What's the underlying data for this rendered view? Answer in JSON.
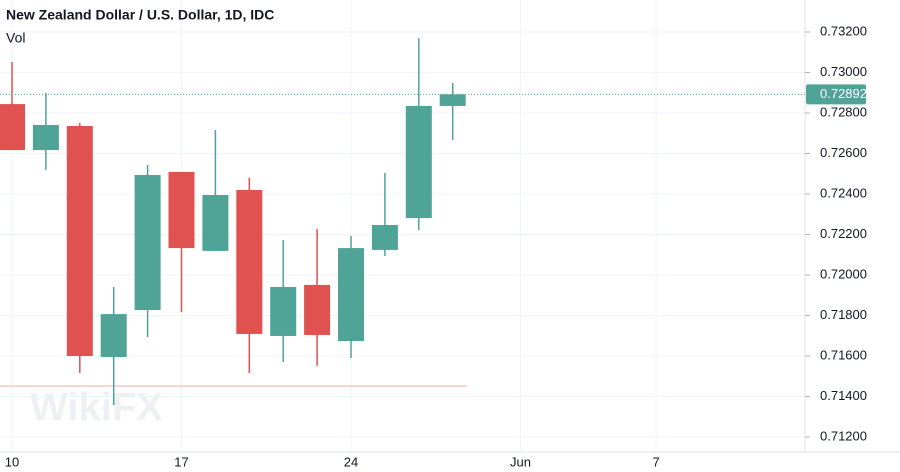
{
  "chart_data": {
    "type": "candlestick",
    "title": "New Zealand Dollar / U.S. Dollar, 1D, IDC",
    "subtitle": "Vol",
    "watermark": "WikiFX",
    "categories": [
      "10",
      null,
      null,
      null,
      null,
      "17",
      null,
      null,
      null,
      null,
      "24",
      null,
      null,
      null,
      null,
      "Jun",
      null,
      null,
      null,
      "7",
      null,
      null,
      null,
      null
    ],
    "open": [
      0.72844,
      0.72617,
      0.72736,
      0.71595,
      0.71827,
      0.72509,
      0.72119,
      0.7242,
      0.71699,
      0.71951,
      0.71674,
      0.72124,
      0.72281,
      0.72835,
      null,
      null,
      null,
      null,
      null,
      null,
      null,
      null,
      null,
      null
    ],
    "high": [
      0.73052,
      0.72899,
      0.72751,
      0.71941,
      0.72543,
      0.72509,
      0.72716,
      0.72479,
      0.72173,
      0.72227,
      0.72193,
      0.72504,
      0.7317,
      0.72948,
      null,
      null,
      null,
      null,
      null,
      null,
      null,
      null,
      null,
      null
    ],
    "low": [
      0.72617,
      0.72519,
      0.71516,
      0.71358,
      0.71694,
      0.71817,
      0.72119,
      0.71516,
      0.7157,
      0.71551,
      0.7159,
      0.72094,
      0.72222,
      0.72667,
      null,
      null,
      null,
      null,
      null,
      null,
      null,
      null,
      null,
      null
    ],
    "close": [
      0.72617,
      0.72741,
      0.716,
      0.71807,
      0.72494,
      0.72133,
      0.72395,
      0.71709,
      0.71941,
      0.71704,
      0.72133,
      0.72247,
      0.72835,
      0.72892,
      null,
      null,
      null,
      null,
      null,
      null,
      null,
      null,
      null,
      null
    ],
    "up_color": "#4fa397",
    "down_color": "#e0524f",
    "ylim": [
      0.71126,
      0.73358
    ],
    "yticks": [
      {
        "value": 0.712,
        "label": "0.71200"
      },
      {
        "value": 0.714,
        "label": "0.71400"
      },
      {
        "value": 0.716,
        "label": "0.71600"
      },
      {
        "value": 0.718,
        "label": "0.71800"
      },
      {
        "value": 0.72,
        "label": "0.72000"
      },
      {
        "value": 0.722,
        "label": "0.72200"
      },
      {
        "value": 0.724,
        "label": "0.72400"
      },
      {
        "value": 0.726,
        "label": "0.72600"
      },
      {
        "value": 0.728,
        "label": "0.72800"
      },
      {
        "value": 0.73,
        "label": "0.73000"
      },
      {
        "value": 0.732,
        "label": "0.73200"
      }
    ],
    "last_price": {
      "value": 0.72892,
      "label": "0.72892"
    },
    "grid": true
  }
}
